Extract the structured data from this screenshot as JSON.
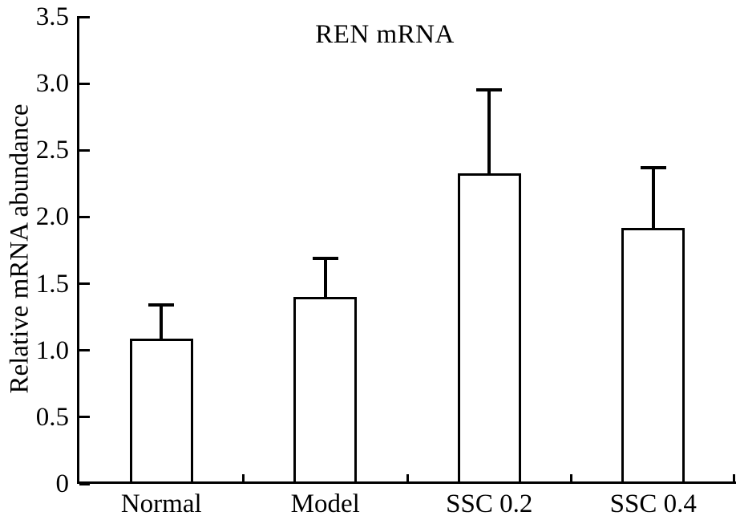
{
  "chart_data": {
    "type": "bar",
    "title": "REN mRNA",
    "xlabel": "",
    "ylabel": "Relative mRNA abundance",
    "categories": [
      "Normal",
      "Model",
      "SSC 0.2",
      "SSC 0.4"
    ],
    "series": [
      {
        "name": "Relative mRNA abundance",
        "values": [
          1.09,
          1.4,
          2.33,
          1.92
        ],
        "errors_plus": [
          0.25,
          0.29,
          0.62,
          0.45
        ]
      }
    ],
    "ylim": [
      0,
      3.5
    ],
    "yticks": [
      0,
      0.5,
      1.0,
      1.5,
      2.0,
      2.5,
      3.0,
      3.5
    ],
    "ytick_labels": [
      "0",
      "0.5",
      "1.0",
      "1.5",
      "2.0",
      "2.5",
      "3.0",
      "3.5"
    ],
    "grid": false,
    "legend": false,
    "colors": {
      "background": "#ffffff",
      "line": "#000000",
      "text": "#000000",
      "bar_fill": "#ffffff",
      "bar_edge": "#000000"
    }
  }
}
